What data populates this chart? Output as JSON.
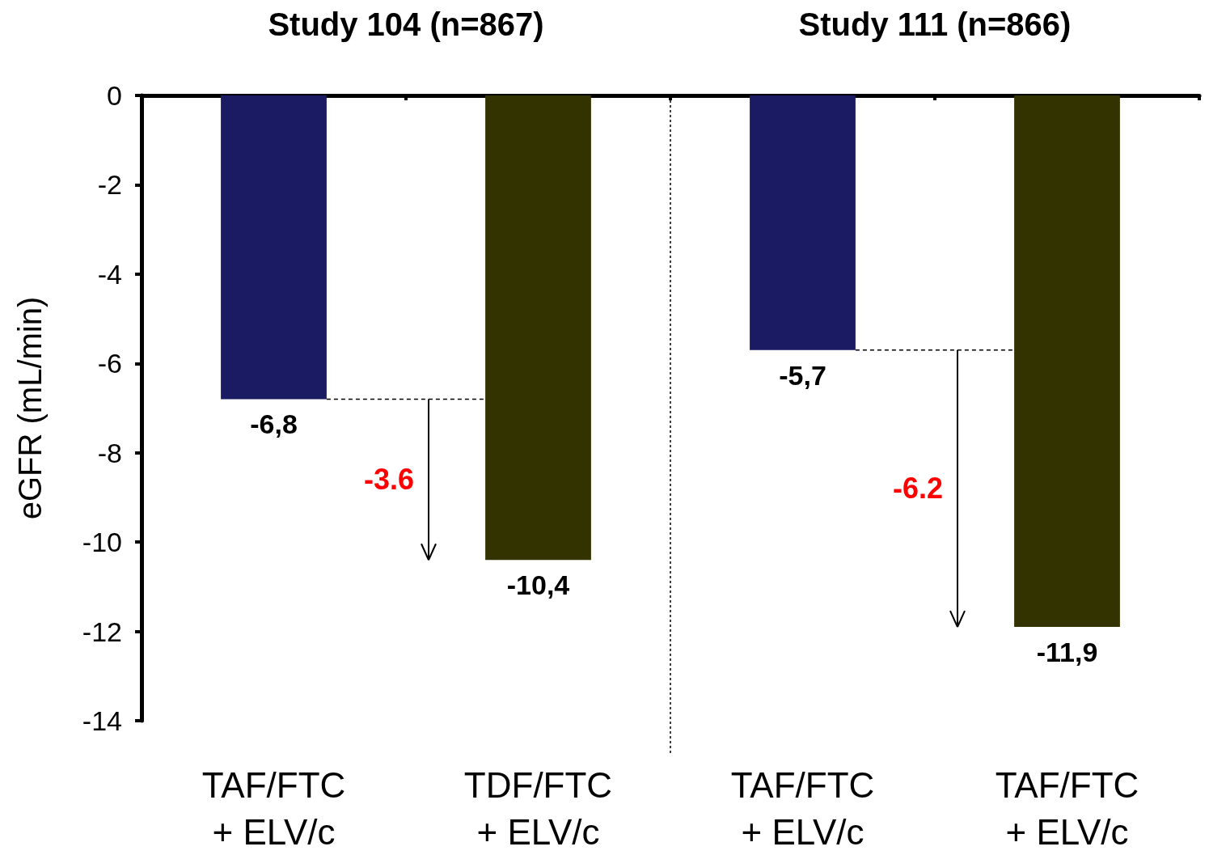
{
  "chart_data": {
    "type": "bar",
    "ylabel": "eGFR (mL/min)",
    "categories": [
      "TAF/FTC\n+ ELV/c",
      "TDF/FTC\n+ ELV/c",
      "TAF/FTC\n+ ELV/c",
      "TAF/FTC\n+ ELV/c"
    ],
    "values": [
      -6.8,
      -10.4,
      -5.7,
      -11.9
    ],
    "colors": [
      "#1b1b63",
      "#333300",
      "#1b1b63",
      "#333300"
    ],
    "value_labels": [
      "-6,8",
      "-10,4",
      "-5,7",
      "-11,9"
    ],
    "ylim": [
      -14,
      0
    ],
    "yticks": [
      -14,
      -12,
      -10,
      -8,
      -6,
      -4,
      -2,
      0
    ],
    "annotations": [
      "Study 104 (n=867)",
      "Study 111 (n=866)",
      "-3.6",
      "-6.2"
    ],
    "grid": false
  }
}
